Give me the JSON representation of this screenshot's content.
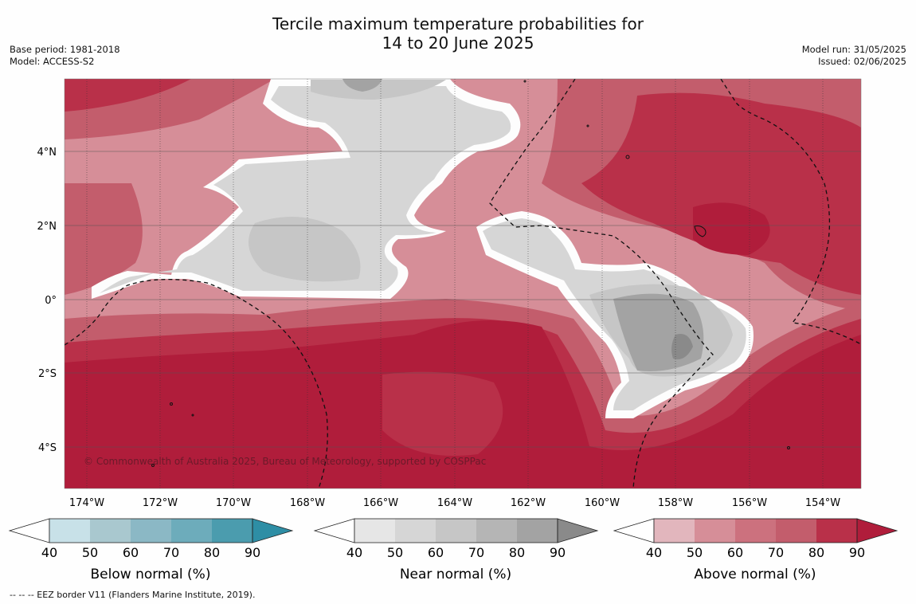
{
  "header": {
    "title_line1": "Tercile maximum temperature probabilities for",
    "title_line2": "14 to 20 June 2025",
    "base_period": "Base period: 1981-2018",
    "model": "Model: ACCESS-S2",
    "model_run": "Model run: 31/05/2025",
    "issued": "Issued: 02/06/2025"
  },
  "map": {
    "lon_ticks": [
      "174°W",
      "172°W",
      "170°W",
      "168°W",
      "166°W",
      "164°W",
      "162°W",
      "160°W",
      "158°W",
      "156°W",
      "154°W"
    ],
    "lat_ticks": [
      "4°N",
      "2°N",
      "0°",
      "2°S",
      "4°S"
    ],
    "copyright": "© Commonwealth of Australia 2025, Bureau of Meteorology, supported by COSPPac",
    "colors": {
      "above": [
        "#e2b6bd",
        "#d68e98",
        "#cc717e",
        "#c35d6c",
        "#b93049",
        "#b01d3b"
      ],
      "near": [
        "#e6e6e6",
        "#d6d6d6",
        "#c6c6c6",
        "#b5b5b5",
        "#a3a3a3",
        "#8a8a8a"
      ],
      "below": [
        "#c8e1e8",
        "#a9c8cf",
        "#8bb8c5",
        "#6dacbb",
        "#4b9cae",
        "#2e8ea5"
      ]
    }
  },
  "colorbars": [
    {
      "label": "Below normal (%)",
      "ticks": [
        "40",
        "50",
        "60",
        "70",
        "80",
        "90"
      ]
    },
    {
      "label": "Near normal (%)",
      "ticks": [
        "40",
        "50",
        "60",
        "70",
        "80",
        "90"
      ]
    },
    {
      "label": "Above normal (%)",
      "ticks": [
        "40",
        "50",
        "60",
        "70",
        "80",
        "90"
      ]
    }
  ],
  "footnote": "--  --  -- EEZ border V11 (Flanders Marine Institute, 2019)."
}
